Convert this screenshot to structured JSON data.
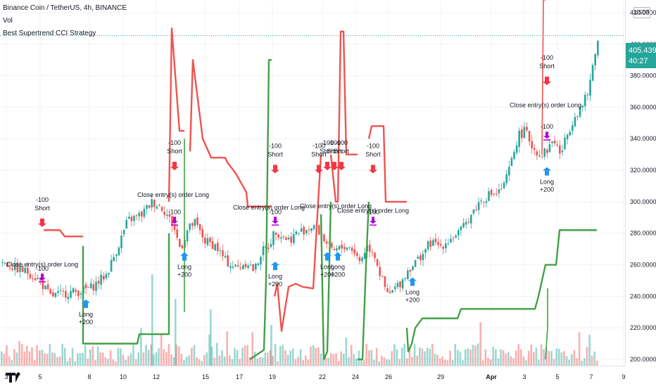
{
  "header": {
    "symbol_line": "Binance Coin / TetherUS, 4h, BINANCE",
    "indicator_vol": "Vol",
    "indicator_strategy": "Best Supertrend CCI Strategy"
  },
  "price_axis": {
    "currency": "USDT",
    "current_price": "405.4396",
    "countdown": "40:27"
  },
  "colors": {
    "up": "#26a69a",
    "down": "#ef5350",
    "supertrend_up": "#43a047",
    "supertrend_down": "#ef5350",
    "long_arrow": "#2196f3",
    "short_arrow": "#f23645",
    "close_arrow": "#b000d6",
    "grid": "#f0f3fa",
    "text": "#131722"
  },
  "chart_data": {
    "type": "candlestick",
    "title": "Binance Coin / TetherUS, 4h, BINANCE",
    "y_range": [
      196,
      428
    ],
    "y_ticks": [
      "200.0000",
      "220.0000",
      "240.0000",
      "260.0000",
      "280.0000",
      "300.0000",
      "320.0000",
      "340.0000",
      "360.0000",
      "380.0000",
      "400.0000",
      "420.0000"
    ],
    "x_ticks": [
      "3",
      "5",
      "8",
      "10",
      "12",
      "15",
      "17",
      "19",
      "22",
      "24",
      "26",
      "29",
      "Apr",
      "3",
      "5",
      "7",
      "9"
    ],
    "current_price": 405.44,
    "price_key_points": [
      [
        0,
        262
      ],
      [
        20,
        258
      ],
      [
        40,
        255
      ],
      [
        55,
        250
      ],
      [
        70,
        240
      ],
      [
        90,
        242
      ],
      [
        110,
        243
      ],
      [
        130,
        246
      ],
      [
        150,
        254
      ],
      [
        165,
        270
      ],
      [
        180,
        288
      ],
      [
        200,
        292
      ],
      [
        215,
        300
      ],
      [
        230,
        296
      ],
      [
        245,
        285
      ],
      [
        255,
        270
      ],
      [
        265,
        282
      ],
      [
        275,
        287
      ],
      [
        290,
        275
      ],
      [
        305,
        272
      ],
      [
        320,
        262
      ],
      [
        335,
        258
      ],
      [
        350,
        262
      ],
      [
        360,
        256
      ],
      [
        370,
        268
      ],
      [
        380,
        272
      ],
      [
        390,
        282
      ],
      [
        400,
        278
      ],
      [
        410,
        276
      ],
      [
        420,
        280
      ],
      [
        430,
        282
      ],
      [
        445,
        285
      ],
      [
        460,
        276
      ],
      [
        470,
        268
      ],
      [
        480,
        270
      ],
      [
        490,
        272
      ],
      [
        500,
        270
      ],
      [
        510,
        262
      ],
      [
        520,
        272
      ],
      [
        530,
        268
      ],
      [
        540,
        252
      ],
      [
        550,
        240
      ],
      [
        560,
        245
      ],
      [
        570,
        250
      ],
      [
        580,
        258
      ],
      [
        590,
        262
      ],
      [
        600,
        268
      ],
      [
        610,
        274
      ],
      [
        625,
        272
      ],
      [
        640,
        277
      ],
      [
        655,
        282
      ],
      [
        665,
        290
      ],
      [
        680,
        300
      ],
      [
        695,
        305
      ],
      [
        705,
        305
      ],
      [
        715,
        310
      ],
      [
        725,
        325
      ],
      [
        735,
        342
      ],
      [
        745,
        345
      ],
      [
        755,
        335
      ],
      [
        765,
        330
      ],
      [
        775,
        332
      ],
      [
        785,
        340
      ],
      [
        795,
        330
      ],
      [
        805,
        343
      ],
      [
        815,
        355
      ],
      [
        825,
        360
      ],
      [
        835,
        370
      ],
      [
        845,
        398
      ],
      [
        852,
        405
      ]
    ],
    "supertrend": [
      {
        "trend": "down",
        "points": [
          [
            62,
            282
          ],
          [
            85,
            282
          ],
          [
            92,
            278
          ],
          [
            118,
            278
          ]
        ]
      },
      {
        "trend": "up",
        "points": [
          [
            118,
            272
          ],
          [
            118,
            210
          ],
          [
            195,
            210
          ],
          [
            198,
            216
          ],
          [
            240,
            216
          ],
          [
            240,
            280
          ]
        ]
      },
      {
        "trend": "down",
        "points": [
          [
            240,
            300
          ],
          [
            244,
            410
          ],
          [
            255,
            345
          ],
          [
            262,
            345
          ]
        ]
      },
      {
        "trend": "up",
        "points": [
          [
            262,
            340
          ],
          [
            262,
            230
          ]
        ]
      },
      {
        "trend": "down",
        "points": [
          [
            270,
            332
          ],
          [
            274,
            390
          ],
          [
            288,
            340
          ],
          [
            300,
            328
          ],
          [
            320,
            328
          ],
          [
            323,
            325
          ],
          [
            335,
            318
          ],
          [
            350,
            306
          ],
          [
            352,
            297
          ],
          [
            385,
            297
          ]
        ]
      },
      {
        "trend": "up",
        "points": [
          [
            355,
            200
          ],
          [
            365,
            203
          ],
          [
            375,
            206
          ],
          [
            378,
            250
          ],
          [
            382,
            390
          ],
          [
            386,
            390
          ]
        ]
      },
      {
        "trend": "down",
        "points": [
          [
            390,
            240
          ],
          [
            394,
            248
          ],
          [
            400,
            218
          ],
          [
            410,
            246
          ],
          [
            420,
            248
          ],
          [
            430,
            246
          ],
          [
            445,
            245
          ],
          [
            452,
            300
          ],
          [
            456,
            330
          ]
        ]
      },
      {
        "trend": "up",
        "points": [
          [
            456,
            292
          ],
          [
            460,
            200
          ],
          [
            465,
            205
          ],
          [
            470,
            300
          ]
        ]
      },
      {
        "trend": "down",
        "points": [
          [
            470,
            330
          ],
          [
            477,
            300
          ],
          [
            480,
            300
          ],
          [
            484,
            408
          ],
          [
            488,
            408
          ],
          [
            492,
            330
          ],
          [
            508,
            330
          ]
        ]
      },
      {
        "trend": "up",
        "points": [
          [
            508,
            200
          ],
          [
            515,
            200
          ],
          [
            520,
            260
          ],
          [
            524,
            300
          ]
        ]
      },
      {
        "trend": "down",
        "points": [
          [
            524,
            340
          ],
          [
            528,
            348
          ],
          [
            545,
            348
          ],
          [
            548,
            300
          ],
          [
            578,
            300
          ]
        ]
      },
      {
        "trend": "up",
        "points": [
          [
            578,
            220
          ],
          [
            580,
            205
          ],
          [
            585,
            210
          ],
          [
            590,
            220
          ],
          [
            600,
            226
          ],
          [
            650,
            226
          ],
          [
            655,
            232
          ],
          [
            760,
            232
          ],
          [
            765,
            240
          ],
          [
            775,
            260
          ],
          [
            790,
            260
          ],
          [
            795,
            282
          ],
          [
            848,
            282
          ]
        ]
      },
      {
        "trend": "down",
        "points": [
          [
            770,
            330
          ],
          [
            772,
            428
          ],
          [
            775,
            428
          ]
        ]
      },
      {
        "trend": "up",
        "points": [
          [
            775,
            200
          ],
          [
            778,
            220
          ],
          [
            778,
            245
          ]
        ]
      }
    ],
    "signals": [
      {
        "kind": "short",
        "x": 60,
        "y": 284,
        "label": "-100",
        "text": "Short"
      },
      {
        "kind": "close",
        "x": 60,
        "y": 250,
        "label": "-100",
        "text": "Close entry(s) order Long"
      },
      {
        "kind": "long",
        "x": 122,
        "y": 238,
        "label": "+200",
        "text": "Long"
      },
      {
        "kind": "short",
        "x": 248,
        "y": 320,
        "label": "-100",
        "text": "Short"
      },
      {
        "kind": "close",
        "x": 248,
        "y": 286,
        "label": "-100",
        "text": "Close entry(s) order Long"
      },
      {
        "kind": "long",
        "x": 262,
        "y": 268,
        "label": "+200",
        "text": "Long"
      },
      {
        "kind": "short",
        "x": 391,
        "y": 318,
        "label": "-100",
        "text": "Short"
      },
      {
        "kind": "close",
        "x": 391,
        "y": 286,
        "label": "-100",
        "text": "Close entry(s) order Long"
      },
      {
        "kind": "long",
        "x": 391,
        "y": 262,
        "label": "+200",
        "text": "Long"
      },
      {
        "kind": "short",
        "x": 453,
        "y": 318,
        "label": "-100",
        "text": "Short"
      },
      {
        "kind": "short",
        "x": 465,
        "y": 320,
        "label": "-100",
        "text": "Short"
      },
      {
        "kind": "short",
        "x": 475,
        "y": 320,
        "label": "-100",
        "text": "Short"
      },
      {
        "kind": "short",
        "x": 485,
        "y": 320,
        "label": "-100",
        "text": "Short"
      },
      {
        "kind": "long",
        "x": 465,
        "y": 268,
        "label": "+200",
        "text": "Long"
      },
      {
        "kind": "long",
        "x": 480,
        "y": 268,
        "label": "+200",
        "text": "Long"
      },
      {
        "kind": "short",
        "x": 530,
        "y": 318,
        "label": "-100",
        "text": "Short"
      },
      {
        "kind": "close",
        "x": 530,
        "y": 286,
        "label": "-100",
        "text": "Close entry(s) order Long"
      },
      {
        "kind": "long",
        "x": 586,
        "y": 252,
        "label": "+200",
        "text": "Long"
      },
      {
        "kind": "short",
        "x": 777,
        "y": 374,
        "label": "-100",
        "text": "Short"
      },
      {
        "kind": "close",
        "x": 777,
        "y": 340,
        "label": "-100",
        "text": "Close entry(s) order Long"
      },
      {
        "kind": "long",
        "x": 777,
        "y": 322,
        "label": "+200",
        "text": "Long"
      }
    ],
    "plain_labels": [
      {
        "x": 60,
        "y": 259,
        "text": "Close entry(s) order Long"
      },
      {
        "x": 246,
        "y": 303,
        "text": "Close entry(s) order Long"
      },
      {
        "x": 382,
        "y": 295,
        "text": "Close entry(s) order Long"
      },
      {
        "x": 477,
        "y": 296,
        "text": "Close entry(s) order Long"
      },
      {
        "x": 530,
        "y": 293,
        "text": "Close entry(s) order Long"
      },
      {
        "x": 775,
        "y": 360,
        "text": "Close entry(s) order Long"
      }
    ]
  }
}
